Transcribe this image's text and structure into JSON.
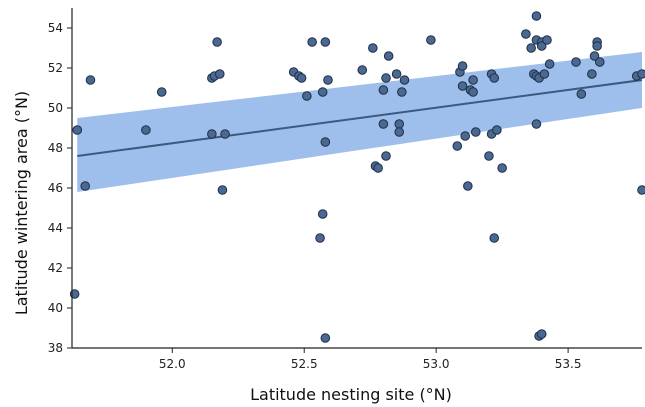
{
  "chart_data": {
    "type": "scatter",
    "title": "",
    "xlabel": "Latitude nesting site (°N)",
    "ylabel": "Latitude wintering area (°N)",
    "xlim": [
      51.62,
      53.78
    ],
    "ylim": [
      38,
      55
    ],
    "x_ticks": [
      52.0,
      52.5,
      53.0,
      53.5
    ],
    "x_tick_labels": [
      "52.0",
      "52.5",
      "53.0",
      "53.5"
    ],
    "y_ticks": [
      38,
      40,
      42,
      44,
      46,
      48,
      50,
      52,
      54
    ],
    "y_tick_labels": [
      "38",
      "40",
      "42",
      "44",
      "46",
      "48",
      "50",
      "52",
      "54"
    ],
    "grid": false,
    "colors": {
      "point_fill": "#4a6890",
      "point_stroke": "#1f2f48",
      "band_fill": "#8db4e8",
      "line": "#3c5a80",
      "axis": "#222222"
    },
    "fit": {
      "x": [
        51.64,
        53.78
      ],
      "y": [
        47.6,
        51.4
      ],
      "ci_lower": [
        45.8,
        50.0
      ],
      "ci_upper": [
        49.5,
        52.8
      ]
    },
    "points": [
      {
        "x": 51.63,
        "y": 40.7
      },
      {
        "x": 51.64,
        "y": 48.9
      },
      {
        "x": 51.67,
        "y": 46.1
      },
      {
        "x": 51.69,
        "y": 51.4
      },
      {
        "x": 51.9,
        "y": 48.9
      },
      {
        "x": 51.96,
        "y": 50.8
      },
      {
        "x": 52.15,
        "y": 51.5
      },
      {
        "x": 52.15,
        "y": 48.7
      },
      {
        "x": 52.16,
        "y": 51.6
      },
      {
        "x": 52.17,
        "y": 53.3
      },
      {
        "x": 52.18,
        "y": 51.7
      },
      {
        "x": 52.19,
        "y": 45.9
      },
      {
        "x": 52.2,
        "y": 48.7
      },
      {
        "x": 52.46,
        "y": 51.8
      },
      {
        "x": 52.48,
        "y": 51.6
      },
      {
        "x": 52.49,
        "y": 51.5
      },
      {
        "x": 52.51,
        "y": 50.6
      },
      {
        "x": 52.53,
        "y": 53.3
      },
      {
        "x": 52.56,
        "y": 43.5
      },
      {
        "x": 52.57,
        "y": 44.7
      },
      {
        "x": 52.57,
        "y": 50.8
      },
      {
        "x": 52.58,
        "y": 53.3
      },
      {
        "x": 52.58,
        "y": 48.3
      },
      {
        "x": 52.59,
        "y": 51.4
      },
      {
        "x": 52.58,
        "y": 38.5
      },
      {
        "x": 52.72,
        "y": 51.9
      },
      {
        "x": 52.76,
        "y": 53.0
      },
      {
        "x": 52.77,
        "y": 47.1
      },
      {
        "x": 52.78,
        "y": 47.0
      },
      {
        "x": 52.8,
        "y": 50.9
      },
      {
        "x": 52.8,
        "y": 49.2
      },
      {
        "x": 52.81,
        "y": 51.5
      },
      {
        "x": 52.81,
        "y": 47.6
      },
      {
        "x": 52.82,
        "y": 52.6
      },
      {
        "x": 52.85,
        "y": 51.7
      },
      {
        "x": 52.86,
        "y": 49.2
      },
      {
        "x": 52.86,
        "y": 48.8
      },
      {
        "x": 52.87,
        "y": 50.8
      },
      {
        "x": 52.88,
        "y": 51.4
      },
      {
        "x": 52.98,
        "y": 53.4
      },
      {
        "x": 53.08,
        "y": 48.1
      },
      {
        "x": 53.09,
        "y": 51.8
      },
      {
        "x": 53.1,
        "y": 52.1
      },
      {
        "x": 53.1,
        "y": 51.1
      },
      {
        "x": 53.11,
        "y": 48.6
      },
      {
        "x": 53.12,
        "y": 46.1
      },
      {
        "x": 53.13,
        "y": 50.9
      },
      {
        "x": 53.14,
        "y": 51.4
      },
      {
        "x": 53.15,
        "y": 48.8
      },
      {
        "x": 53.14,
        "y": 50.8
      },
      {
        "x": 53.2,
        "y": 47.6
      },
      {
        "x": 53.21,
        "y": 48.7
      },
      {
        "x": 53.21,
        "y": 51.7
      },
      {
        "x": 53.22,
        "y": 51.5
      },
      {
        "x": 53.22,
        "y": 43.5
      },
      {
        "x": 53.23,
        "y": 48.9
      },
      {
        "x": 53.25,
        "y": 47.0
      },
      {
        "x": 53.34,
        "y": 53.7
      },
      {
        "x": 53.36,
        "y": 53.0
      },
      {
        "x": 53.37,
        "y": 51.7
      },
      {
        "x": 53.38,
        "y": 54.6
      },
      {
        "x": 53.38,
        "y": 53.4
      },
      {
        "x": 53.38,
        "y": 51.6
      },
      {
        "x": 53.38,
        "y": 49.2
      },
      {
        "x": 53.39,
        "y": 51.5
      },
      {
        "x": 53.4,
        "y": 53.3
      },
      {
        "x": 53.4,
        "y": 53.1
      },
      {
        "x": 53.41,
        "y": 51.7
      },
      {
        "x": 53.39,
        "y": 38.6
      },
      {
        "x": 53.4,
        "y": 38.7
      },
      {
        "x": 53.42,
        "y": 53.4
      },
      {
        "x": 53.43,
        "y": 52.2
      },
      {
        "x": 53.53,
        "y": 52.3
      },
      {
        "x": 53.55,
        "y": 50.7
      },
      {
        "x": 53.59,
        "y": 51.7
      },
      {
        "x": 53.6,
        "y": 52.6
      },
      {
        "x": 53.61,
        "y": 53.3
      },
      {
        "x": 53.61,
        "y": 53.1
      },
      {
        "x": 53.62,
        "y": 52.3
      },
      {
        "x": 53.76,
        "y": 51.6
      },
      {
        "x": 53.78,
        "y": 51.7
      },
      {
        "x": 53.78,
        "y": 45.9
      }
    ]
  }
}
